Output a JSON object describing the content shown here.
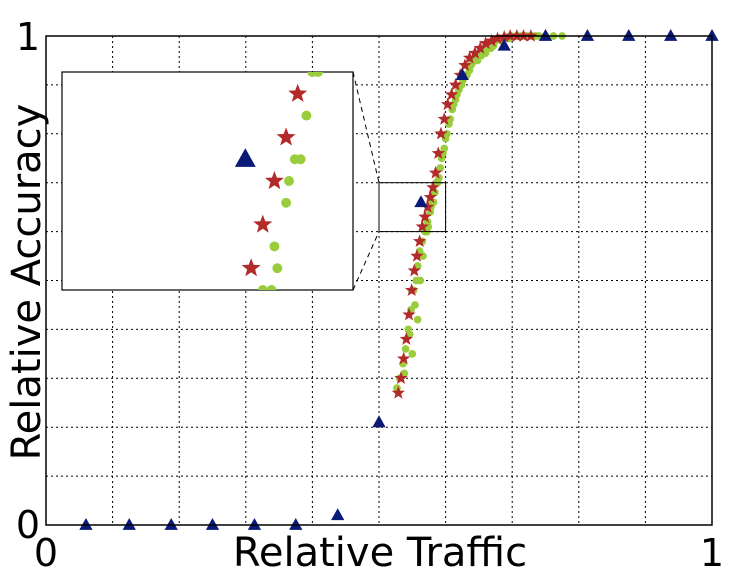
{
  "chart_data": {
    "type": "scatter",
    "title": "",
    "xlabel": "Relative Traffic",
    "ylabel": "Relative Accuracy",
    "xlim": [
      0,
      1
    ],
    "ylim": [
      0,
      1
    ],
    "xticks": [
      "0",
      "1"
    ],
    "yticks": [
      "0",
      "1"
    ],
    "grid": true,
    "legend": "none",
    "series": [
      {
        "marker": "triangle",
        "color": "#0a1a78",
        "x": [
          0.06,
          0.125,
          0.188,
          0.25,
          0.313,
          0.375,
          0.438,
          0.5,
          0.563,
          0.625,
          0.688,
          0.75,
          0.813,
          0.875,
          0.938,
          1.0
        ],
        "y": [
          0.0,
          0.0,
          0.0,
          0.0,
          0.0,
          0.0,
          0.02,
          0.21,
          0.66,
          0.92,
          0.98,
          1.0,
          1.0,
          1.0,
          1.0,
          1.0
        ]
      },
      {
        "marker": "star",
        "color": "#b22a2a",
        "x": [
          0.529,
          0.533,
          0.537,
          0.541,
          0.545,
          0.549,
          0.553,
          0.557,
          0.561,
          0.565,
          0.569,
          0.573,
          0.577,
          0.581,
          0.585,
          0.589,
          0.593,
          0.598,
          0.603,
          0.609,
          0.615,
          0.622,
          0.629,
          0.636,
          0.644,
          0.652,
          0.66,
          0.669,
          0.678,
          0.688,
          0.697,
          0.707,
          0.717,
          0.728
        ],
        "y": [
          0.27,
          0.3,
          0.34,
          0.38,
          0.43,
          0.48,
          0.52,
          0.55,
          0.58,
          0.61,
          0.63,
          0.65,
          0.67,
          0.69,
          0.72,
          0.76,
          0.8,
          0.83,
          0.86,
          0.88,
          0.9,
          0.92,
          0.94,
          0.955,
          0.965,
          0.975,
          0.985,
          0.99,
          0.995,
          0.998,
          1.0,
          1.0,
          1.0,
          1.0
        ]
      },
      {
        "marker": "circle",
        "color": "#9acd3c",
        "x": [
          0.527,
          0.531,
          0.536,
          0.54,
          0.544,
          0.548,
          0.552,
          0.556,
          0.538,
          0.546,
          0.554,
          0.558,
          0.561,
          0.565,
          0.569,
          0.573,
          0.577,
          0.58,
          0.584,
          0.588,
          0.592,
          0.596,
          0.6,
          0.605,
          0.61,
          0.615,
          0.62,
          0.626,
          0.632,
          0.638,
          0.644,
          0.65,
          0.656,
          0.662,
          0.668,
          0.675,
          0.682,
          0.69,
          0.698,
          0.706,
          0.714,
          0.722,
          0.73,
          0.74,
          0.75,
          0.762,
          0.775,
          0.566,
          0.572,
          0.578,
          0.586,
          0.594,
          0.602,
          0.612,
          0.624,
          0.636,
          0.648,
          0.66,
          0.672,
          0.684,
          0.696,
          0.708,
          0.72,
          0.735,
          0.55,
          0.558,
          0.562,
          0.574,
          0.582,
          0.59,
          0.598,
          0.607,
          0.617,
          0.628,
          0.64,
          0.654,
          0.668
        ],
        "y": [
          0.28,
          0.3,
          0.33,
          0.36,
          0.4,
          0.44,
          0.48,
          0.5,
          0.31,
          0.39,
          0.45,
          0.53,
          0.56,
          0.58,
          0.6,
          0.62,
          0.64,
          0.66,
          0.68,
          0.7,
          0.73,
          0.76,
          0.79,
          0.82,
          0.85,
          0.87,
          0.89,
          0.91,
          0.92,
          0.94,
          0.95,
          0.96,
          0.97,
          0.98,
          0.985,
          0.99,
          0.995,
          0.997,
          1.0,
          1.0,
          1.0,
          1.0,
          1.0,
          1.0,
          1.0,
          1.0,
          1.0,
          0.55,
          0.6,
          0.65,
          0.7,
          0.75,
          0.8,
          0.86,
          0.9,
          0.93,
          0.95,
          0.965,
          0.98,
          0.99,
          0.995,
          1.0,
          1.0,
          1.0,
          0.35,
          0.42,
          0.5,
          0.61,
          0.66,
          0.71,
          0.77,
          0.83,
          0.88,
          0.92,
          0.945,
          0.96,
          0.975
        ]
      }
    ],
    "inset": {
      "xlim": [
        0.5,
        0.6
      ],
      "ylim": [
        0.6,
        0.7
      ],
      "placement": "upper-left"
    }
  }
}
